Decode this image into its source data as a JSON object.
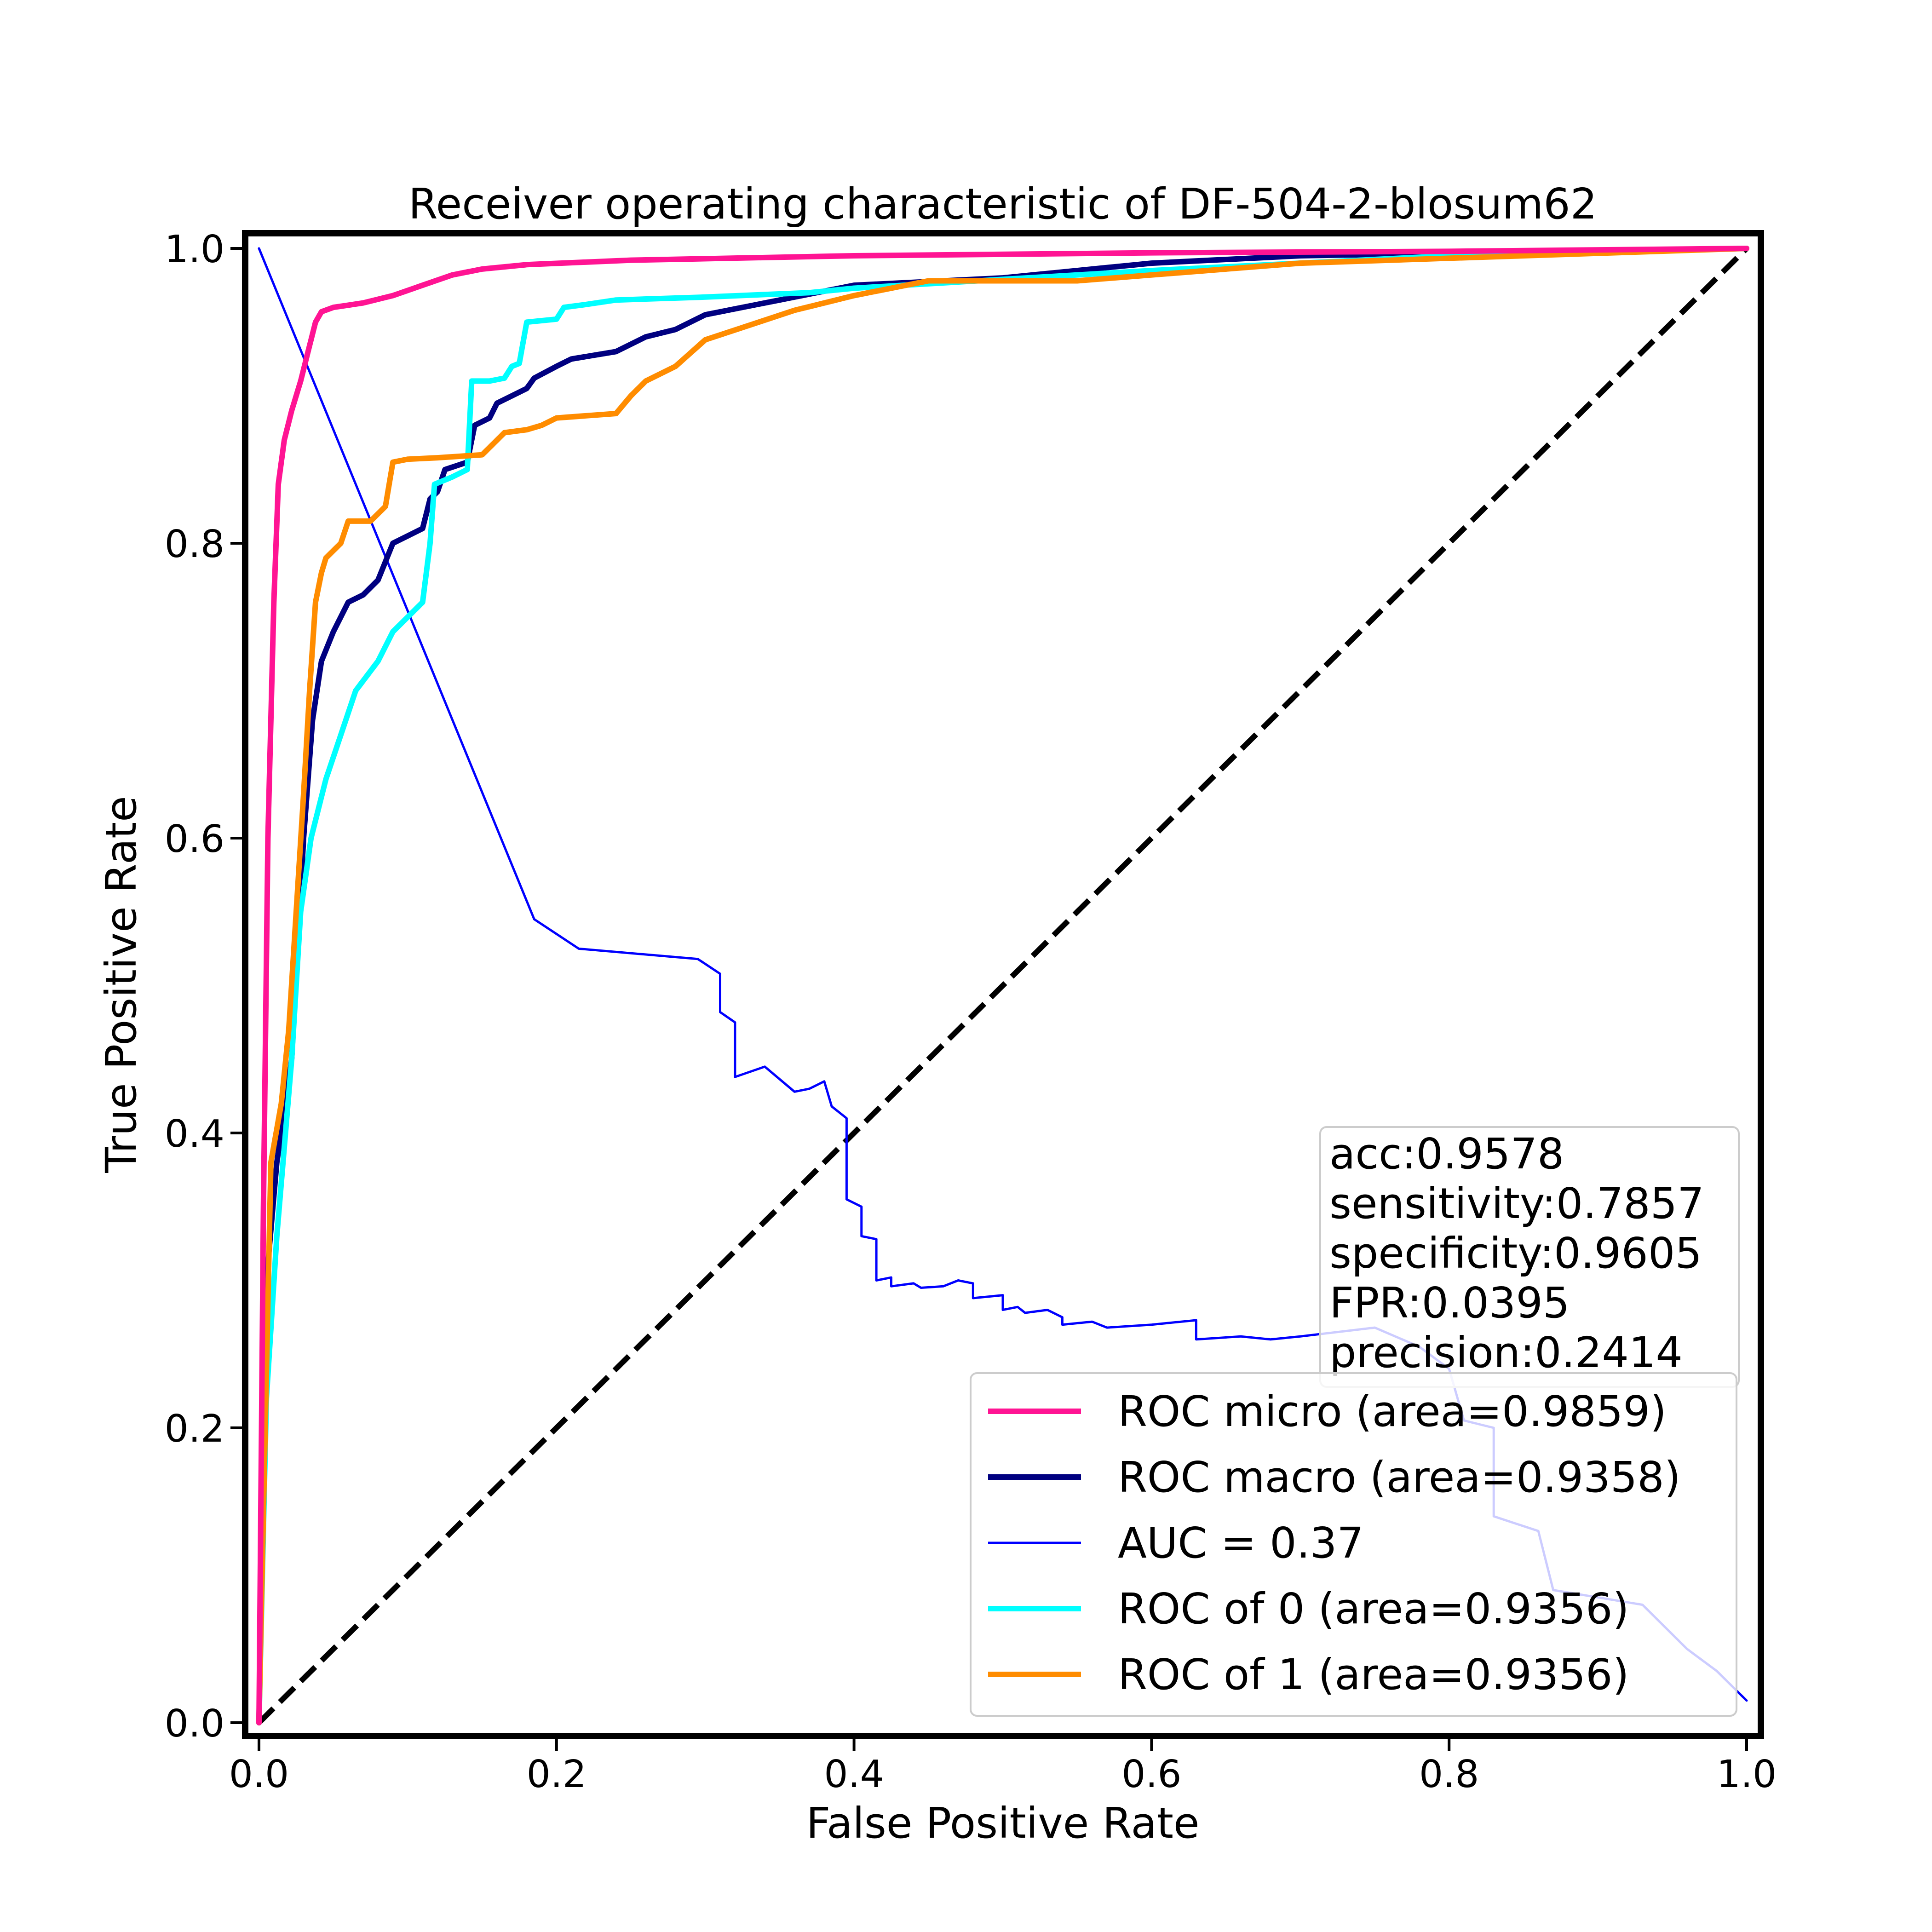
{
  "chart_data": {
    "type": "line",
    "title": "Receiver operating characteristic of DF-504-2-blosum62",
    "xlabel": "False Positive Rate",
    "ylabel": "True Positive Rate",
    "xlim": [
      0.0,
      1.0
    ],
    "ylim": [
      0.0,
      1.0
    ],
    "x_ticks": [
      "0.0",
      "0.2",
      "0.4",
      "0.6",
      "0.8",
      "1.0"
    ],
    "y_ticks": [
      "0.0",
      "0.2",
      "0.4",
      "0.6",
      "0.8",
      "1.0"
    ],
    "grid": false,
    "legend_position": "lower right",
    "stats_box": {
      "position": "right",
      "lines": [
        "acc:0.9578",
        "sensitivity:0.7857",
        "specificity:0.9605",
        "FPR:0.0395",
        "precision:0.2414"
      ]
    },
    "series": [
      {
        "name": "ROC micro (area=0.9859)",
        "color": "#ff1493",
        "width": "thick",
        "points": [
          [
            0,
            0
          ],
          [
            0.003,
            0.35
          ],
          [
            0.006,
            0.6
          ],
          [
            0.01,
            0.76
          ],
          [
            0.013,
            0.84
          ],
          [
            0.017,
            0.87
          ],
          [
            0.022,
            0.89
          ],
          [
            0.028,
            0.91
          ],
          [
            0.033,
            0.93
          ],
          [
            0.038,
            0.95
          ],
          [
            0.042,
            0.957
          ],
          [
            0.05,
            0.96
          ],
          [
            0.07,
            0.963
          ],
          [
            0.09,
            0.968
          ],
          [
            0.11,
            0.975
          ],
          [
            0.13,
            0.982
          ],
          [
            0.15,
            0.986
          ],
          [
            0.18,
            0.989
          ],
          [
            0.25,
            0.992
          ],
          [
            0.4,
            0.995
          ],
          [
            0.6,
            0.997
          ],
          [
            0.8,
            0.998
          ],
          [
            1.0,
            1.0
          ]
        ]
      },
      {
        "name": "ROC macro (area=0.9358)",
        "color": "#000080",
        "width": "thick",
        "points": [
          [
            0,
            0
          ],
          [
            0.005,
            0.3
          ],
          [
            0.012,
            0.38
          ],
          [
            0.022,
            0.45
          ],
          [
            0.03,
            0.6
          ],
          [
            0.036,
            0.68
          ],
          [
            0.042,
            0.72
          ],
          [
            0.05,
            0.74
          ],
          [
            0.06,
            0.76
          ],
          [
            0.07,
            0.765
          ],
          [
            0.08,
            0.775
          ],
          [
            0.09,
            0.8
          ],
          [
            0.1,
            0.805
          ],
          [
            0.11,
            0.81
          ],
          [
            0.115,
            0.83
          ],
          [
            0.12,
            0.835
          ],
          [
            0.125,
            0.85
          ],
          [
            0.14,
            0.855
          ],
          [
            0.145,
            0.88
          ],
          [
            0.155,
            0.885
          ],
          [
            0.16,
            0.895
          ],
          [
            0.17,
            0.9
          ],
          [
            0.18,
            0.905
          ],
          [
            0.185,
            0.912
          ],
          [
            0.2,
            0.92
          ],
          [
            0.21,
            0.925
          ],
          [
            0.24,
            0.93
          ],
          [
            0.26,
            0.94
          ],
          [
            0.28,
            0.945
          ],
          [
            0.3,
            0.955
          ],
          [
            0.35,
            0.965
          ],
          [
            0.4,
            0.975
          ],
          [
            0.5,
            0.98
          ],
          [
            0.6,
            0.99
          ],
          [
            0.7,
            0.995
          ],
          [
            1.0,
            1.0
          ]
        ]
      },
      {
        "name": "AUC = 0.37",
        "color": "#0000ff",
        "width": "thin",
        "points": [
          [
            0.0,
            1.0
          ],
          [
            0.185,
            0.545
          ],
          [
            0.215,
            0.525
          ],
          [
            0.295,
            0.518
          ],
          [
            0.31,
            0.508
          ],
          [
            0.31,
            0.482
          ],
          [
            0.32,
            0.475
          ],
          [
            0.32,
            0.438
          ],
          [
            0.34,
            0.445
          ],
          [
            0.36,
            0.428
          ],
          [
            0.37,
            0.43
          ],
          [
            0.38,
            0.435
          ],
          [
            0.385,
            0.418
          ],
          [
            0.395,
            0.41
          ],
          [
            0.395,
            0.355
          ],
          [
            0.405,
            0.35
          ],
          [
            0.405,
            0.33
          ],
          [
            0.415,
            0.328
          ],
          [
            0.415,
            0.3
          ],
          [
            0.425,
            0.302
          ],
          [
            0.425,
            0.296
          ],
          [
            0.44,
            0.298
          ],
          [
            0.445,
            0.295
          ],
          [
            0.46,
            0.296
          ],
          [
            0.47,
            0.3
          ],
          [
            0.48,
            0.298
          ],
          [
            0.48,
            0.288
          ],
          [
            0.5,
            0.29
          ],
          [
            0.5,
            0.28
          ],
          [
            0.51,
            0.282
          ],
          [
            0.515,
            0.278
          ],
          [
            0.53,
            0.28
          ],
          [
            0.54,
            0.275
          ],
          [
            0.54,
            0.27
          ],
          [
            0.56,
            0.272
          ],
          [
            0.57,
            0.268
          ],
          [
            0.6,
            0.27
          ],
          [
            0.63,
            0.273
          ],
          [
            0.63,
            0.26
          ],
          [
            0.66,
            0.262
          ],
          [
            0.68,
            0.26
          ],
          [
            0.7,
            0.262
          ],
          [
            0.75,
            0.268
          ],
          [
            0.78,
            0.255
          ],
          [
            0.8,
            0.24
          ],
          [
            0.81,
            0.205
          ],
          [
            0.83,
            0.2
          ],
          [
            0.83,
            0.14
          ],
          [
            0.86,
            0.13
          ],
          [
            0.87,
            0.09
          ],
          [
            0.93,
            0.08
          ],
          [
            0.96,
            0.05
          ],
          [
            0.98,
            0.035
          ],
          [
            1.0,
            0.015
          ]
        ]
      },
      {
        "name": "ROC of 0 (area=0.9356)",
        "color": "#00ffff",
        "width": "thick",
        "points": [
          [
            0,
            0
          ],
          [
            0.005,
            0.22
          ],
          [
            0.012,
            0.33
          ],
          [
            0.022,
            0.45
          ],
          [
            0.028,
            0.55
          ],
          [
            0.035,
            0.6
          ],
          [
            0.045,
            0.64
          ],
          [
            0.055,
            0.67
          ],
          [
            0.065,
            0.7
          ],
          [
            0.08,
            0.72
          ],
          [
            0.09,
            0.74
          ],
          [
            0.1,
            0.75
          ],
          [
            0.11,
            0.76
          ],
          [
            0.115,
            0.8
          ],
          [
            0.118,
            0.84
          ],
          [
            0.13,
            0.845
          ],
          [
            0.14,
            0.85
          ],
          [
            0.143,
            0.91
          ],
          [
            0.155,
            0.91
          ],
          [
            0.165,
            0.912
          ],
          [
            0.17,
            0.92
          ],
          [
            0.175,
            0.922
          ],
          [
            0.18,
            0.95
          ],
          [
            0.2,
            0.952
          ],
          [
            0.205,
            0.96
          ],
          [
            0.22,
            0.962
          ],
          [
            0.24,
            0.965
          ],
          [
            0.27,
            0.966
          ],
          [
            0.3,
            0.967
          ],
          [
            0.37,
            0.97
          ],
          [
            0.4,
            0.973
          ],
          [
            0.6,
            0.985
          ],
          [
            0.8,
            0.995
          ],
          [
            1.0,
            1.0
          ]
        ]
      },
      {
        "name": "ROC of 1 (area=0.9356)",
        "color": "#ff8c00",
        "width": "thick",
        "points": [
          [
            0,
            0
          ],
          [
            0.008,
            0.38
          ],
          [
            0.015,
            0.42
          ],
          [
            0.02,
            0.47
          ],
          [
            0.025,
            0.55
          ],
          [
            0.03,
            0.63
          ],
          [
            0.034,
            0.7
          ],
          [
            0.038,
            0.76
          ],
          [
            0.042,
            0.78
          ],
          [
            0.045,
            0.79
          ],
          [
            0.05,
            0.795
          ],
          [
            0.055,
            0.8
          ],
          [
            0.06,
            0.815
          ],
          [
            0.075,
            0.815
          ],
          [
            0.08,
            0.82
          ],
          [
            0.085,
            0.825
          ],
          [
            0.09,
            0.855
          ],
          [
            0.1,
            0.857
          ],
          [
            0.12,
            0.858
          ],
          [
            0.15,
            0.86
          ],
          [
            0.16,
            0.87
          ],
          [
            0.165,
            0.875
          ],
          [
            0.18,
            0.877
          ],
          [
            0.19,
            0.88
          ],
          [
            0.2,
            0.885
          ],
          [
            0.24,
            0.888
          ],
          [
            0.25,
            0.9
          ],
          [
            0.26,
            0.91
          ],
          [
            0.28,
            0.92
          ],
          [
            0.3,
            0.938
          ],
          [
            0.33,
            0.948
          ],
          [
            0.36,
            0.958
          ],
          [
            0.4,
            0.968
          ],
          [
            0.45,
            0.978
          ],
          [
            0.55,
            0.978
          ],
          [
            0.7,
            0.99
          ],
          [
            1.0,
            1.0
          ]
        ]
      }
    ],
    "reference_line": {
      "color": "#000000",
      "style": "dashed",
      "points": [
        [
          0,
          0
        ],
        [
          1,
          1
        ]
      ]
    },
    "legend_entries": [
      "ROC micro (area=0.9859)",
      "ROC macro (area=0.9358)",
      "AUC = 0.37",
      "ROC of 0 (area=0.9356)",
      "ROC of 1 (area=0.9356)"
    ]
  }
}
